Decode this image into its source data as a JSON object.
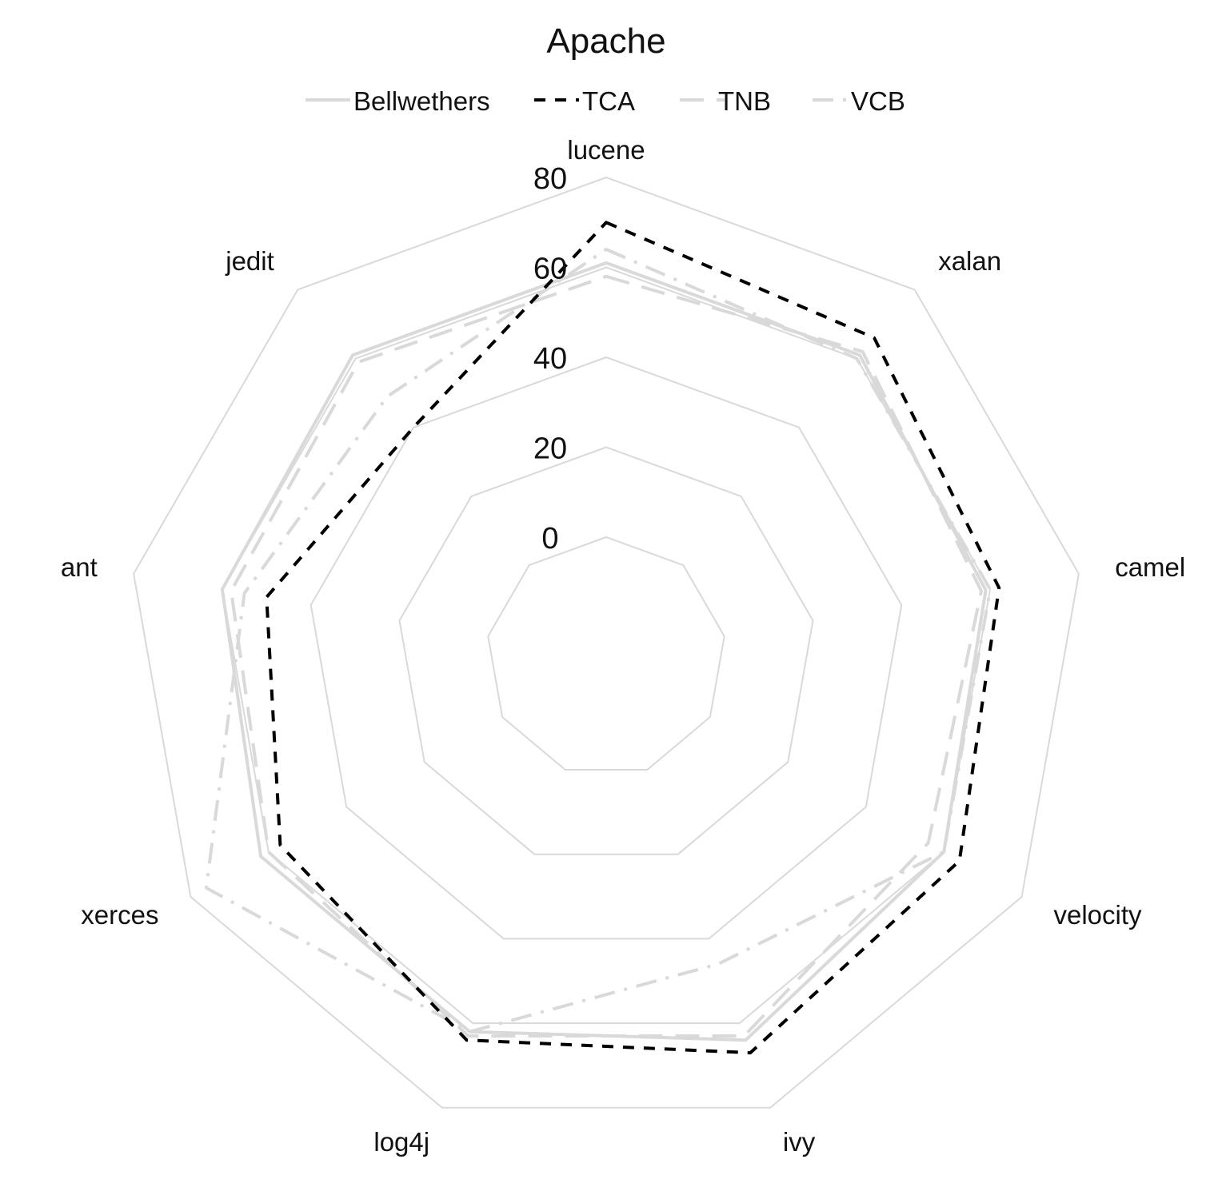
{
  "chart_data": {
    "type": "radar",
    "title": "Apache",
    "categories": [
      "lucene",
      "xalan",
      "camel",
      "velocity",
      "ivy",
      "log4j",
      "xerces",
      "ant",
      "jedit"
    ],
    "rlim": [
      0,
      80
    ],
    "ticks": [
      "0",
      "20",
      "40",
      "60",
      "80"
    ],
    "tick_values": [
      0,
      20,
      40,
      60,
      80
    ],
    "grid": true,
    "legend_position": "top",
    "series": [
      {
        "name": "Bellwethers",
        "color": "#d9d9d9",
        "dash": "solid",
        "values": [
          61,
          61,
          59,
          60,
          64,
          62,
          62,
          60,
          61
        ]
      },
      {
        "name": "TCA",
        "color": "#000000",
        "dash": "dashed",
        "values": [
          70,
          66,
          62,
          64,
          67,
          64,
          57,
          50,
          40
        ]
      },
      {
        "name": "TNB",
        "color": "#d9d9d9",
        "dash": "longdash",
        "values": [
          58,
          62,
          58,
          56,
          63,
          63,
          60,
          58,
          59
        ]
      },
      {
        "name": "VCB",
        "color": "#d9d9d9",
        "dash": "dashdot",
        "values": [
          64,
          60,
          60,
          60,
          46,
          62,
          76,
          55,
          49
        ]
      }
    ]
  }
}
